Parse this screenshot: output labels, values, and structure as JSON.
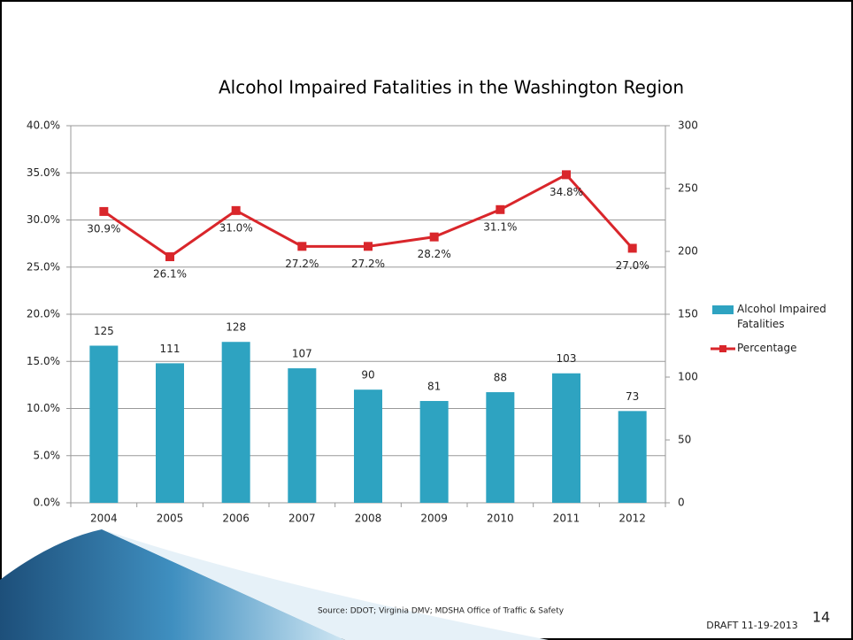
{
  "chart_data": {
    "type": "combo",
    "title": "Alcohol Impaired Fatalities in the Washington Region",
    "categories": [
      "2004",
      "2005",
      "2006",
      "2007",
      "2008",
      "2009",
      "2010",
      "2011",
      "2012"
    ],
    "series": [
      {
        "name": "Alcohol Impaired Fatalities",
        "type": "bar",
        "axis": "y2",
        "color": "#2ea3c1",
        "values": [
          125,
          111,
          128,
          107,
          90,
          81,
          88,
          103,
          73
        ]
      },
      {
        "name": "Percentage",
        "type": "line",
        "color": "#d9262b",
        "values": [
          30.9,
          26.1,
          31.0,
          27.2,
          27.2,
          28.2,
          31.1,
          34.8,
          27.0
        ],
        "value_labels": [
          "30.9%",
          "26.1%",
          "31.0%",
          "27.2%",
          "27.2%",
          "28.2%",
          "31.1%",
          "34.8%",
          "27.0%"
        ]
      }
    ],
    "ylim": [
      0,
      40
    ],
    "yticks": [
      {
        "value": 0,
        "label": "0.0%"
      },
      {
        "value": 5,
        "label": "5.0%"
      },
      {
        "value": 10,
        "label": "10.0%"
      },
      {
        "value": 15,
        "label": "15.0%"
      },
      {
        "value": 20,
        "label": "20.0%"
      },
      {
        "value": 25,
        "label": "25.0%"
      },
      {
        "value": 30,
        "label": "30.0%"
      },
      {
        "value": 35,
        "label": "35.0%"
      },
      {
        "value": 40,
        "label": "40.0%"
      }
    ],
    "y2lim": [
      0,
      300
    ],
    "y2ticks": [
      0,
      50,
      100,
      150,
      200,
      250,
      300
    ],
    "grid": true,
    "legend": "right"
  },
  "footer": {
    "source": "Source: DDOT; Virginia DMV;  MDSHA Office of Traffic & Safety",
    "draft": "DRAFT 11-19-2013",
    "page": "14"
  }
}
